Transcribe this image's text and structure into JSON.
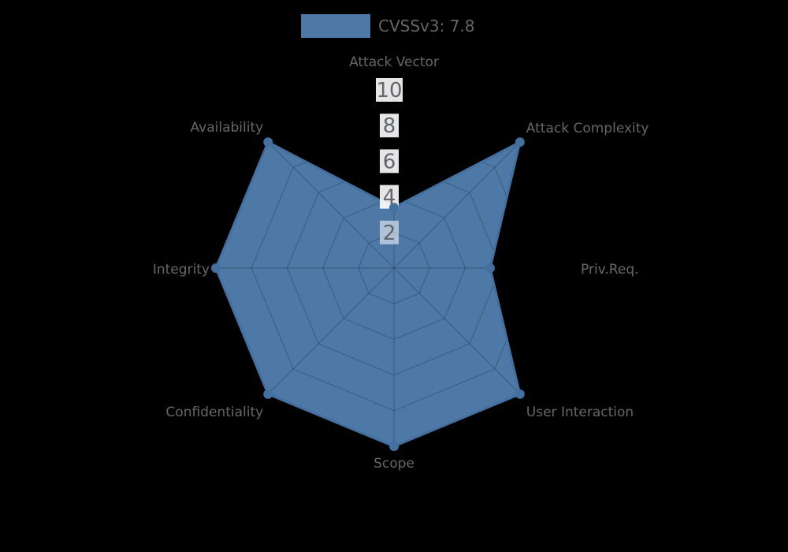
{
  "chart_data": {
    "type": "radar",
    "legend": {
      "label": "CVSSv3: 7.8",
      "position": "top"
    },
    "categories": [
      "Attack Vector",
      "Attack Complexity",
      "Priv.Req.",
      "User Interaction",
      "Scope",
      "Confidentiality",
      "Integrity",
      "Availability"
    ],
    "series": [
      {
        "name": "CVSSv3: 7.8",
        "values": [
          3.4,
          10,
          5.4,
          10,
          10,
          10,
          10,
          10
        ]
      }
    ],
    "axis": {
      "min": 0,
      "max": 10,
      "ticks": [
        2,
        4,
        6,
        8,
        10
      ]
    },
    "grid": true,
    "legend_position": "top-center",
    "colors": {
      "fill": "#4e78a6",
      "line": "#44709f",
      "point": "#44709f",
      "grid": "rgba(0,0,0,0.2)",
      "text": "#666666",
      "tick_text": "#63666a",
      "tick_backdrop": "rgba(255,255,255,0.9)",
      "tick_backdrop_over_fill": "rgba(255,255,255,0.55)",
      "background": "#000000"
    }
  }
}
